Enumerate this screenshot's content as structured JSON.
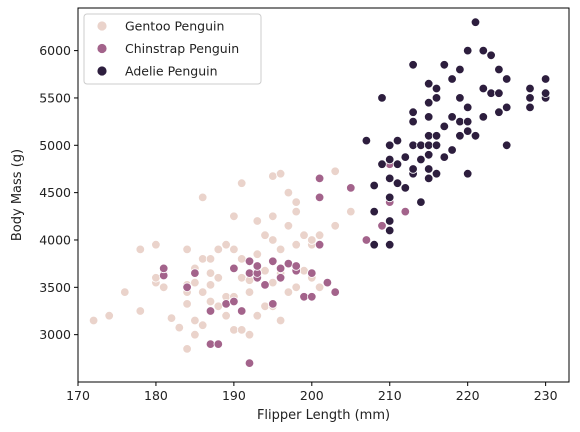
{
  "chart_data": {
    "type": "scatter",
    "xlabel": "Flipper Length (mm)",
    "ylabel": "Body Mass (g)",
    "xlim": [
      170,
      233
    ],
    "ylim": [
      2500,
      6450
    ],
    "xticks": [
      170,
      180,
      190,
      200,
      210,
      220,
      230
    ],
    "yticks": [
      3000,
      3500,
      4000,
      4500,
      5000,
      5500,
      6000
    ],
    "legend_position": "top-left",
    "grid": false,
    "series": [
      {
        "name": "Gentoo Penguin",
        "color": "#ead3cb",
        "points": [
          [
            172,
            3150
          ],
          [
            174,
            3200
          ],
          [
            176,
            3450
          ],
          [
            178,
            3250
          ],
          [
            178,
            3900
          ],
          [
            180,
            3550
          ],
          [
            180,
            3600
          ],
          [
            180,
            3950
          ],
          [
            181,
            3500
          ],
          [
            181,
            3650
          ],
          [
            182,
            3175
          ],
          [
            183,
            3075
          ],
          [
            184,
            2850
          ],
          [
            184,
            3325
          ],
          [
            184,
            3450
          ],
          [
            184,
            3525
          ],
          [
            184,
            3900
          ],
          [
            185,
            3000
          ],
          [
            185,
            3150
          ],
          [
            185,
            3550
          ],
          [
            185,
            3700
          ],
          [
            186,
            3100
          ],
          [
            186,
            3450
          ],
          [
            186,
            3800
          ],
          [
            186,
            4450
          ],
          [
            187,
            3650
          ],
          [
            187,
            3350
          ],
          [
            187,
            3525
          ],
          [
            187,
            3800
          ],
          [
            188,
            3300
          ],
          [
            188,
            3900
          ],
          [
            188,
            3600
          ],
          [
            189,
            3400
          ],
          [
            189,
            3200
          ],
          [
            189,
            3950
          ],
          [
            190,
            3050
          ],
          [
            190,
            3400
          ],
          [
            190,
            3900
          ],
          [
            190,
            4250
          ],
          [
            190,
            3700
          ],
          [
            191,
            3050
          ],
          [
            191,
            3600
          ],
          [
            191,
            4600
          ],
          [
            191,
            3800
          ],
          [
            192,
            3000
          ],
          [
            192,
            3450
          ],
          [
            192,
            3575
          ],
          [
            193,
            3200
          ],
          [
            193,
            3700
          ],
          [
            193,
            3850
          ],
          [
            193,
            4200
          ],
          [
            194,
            3300
          ],
          [
            194,
            3675
          ],
          [
            194,
            4050
          ],
          [
            195,
            3300
          ],
          [
            195,
            3550
          ],
          [
            195,
            4000
          ],
          [
            195,
            4250
          ],
          [
            195,
            4675
          ],
          [
            196,
            3150
          ],
          [
            196,
            3650
          ],
          [
            196,
            3900
          ],
          [
            196,
            4700
          ],
          [
            197,
            3450
          ],
          [
            197,
            4150
          ],
          [
            197,
            4500
          ],
          [
            198,
            3500
          ],
          [
            198,
            3950
          ],
          [
            198,
            4300
          ],
          [
            198,
            4400
          ],
          [
            199,
            3675
          ],
          [
            199,
            4050
          ],
          [
            200,
            3600
          ],
          [
            200,
            3950
          ],
          [
            200,
            4000
          ],
          [
            201,
            3500
          ],
          [
            201,
            4050
          ],
          [
            203,
            4150
          ],
          [
            203,
            4725
          ],
          [
            205,
            4300
          ]
        ]
      },
      {
        "name": "Chinstrap Penguin",
        "color": "#a3638b",
        "points": [
          [
            181,
            3625
          ],
          [
            181,
            3700
          ],
          [
            184,
            3500
          ],
          [
            185,
            3650
          ],
          [
            187,
            2900
          ],
          [
            187,
            3250
          ],
          [
            188,
            2900
          ],
          [
            189,
            3325
          ],
          [
            190,
            3350
          ],
          [
            190,
            3700
          ],
          [
            191,
            3250
          ],
          [
            192,
            2700
          ],
          [
            192,
            3775
          ],
          [
            192,
            3650
          ],
          [
            193,
            3600
          ],
          [
            193,
            3725
          ],
          [
            193,
            3650
          ],
          [
            194,
            3525
          ],
          [
            195,
            3325
          ],
          [
            195,
            3775
          ],
          [
            196,
            3600
          ],
          [
            196,
            3700
          ],
          [
            197,
            3750
          ],
          [
            198,
            3675
          ],
          [
            198,
            3725
          ],
          [
            199,
            3400
          ],
          [
            200,
            3400
          ],
          [
            200,
            3650
          ],
          [
            201,
            3950
          ],
          [
            201,
            4450
          ],
          [
            201,
            4650
          ],
          [
            202,
            3550
          ],
          [
            203,
            3450
          ],
          [
            205,
            4550
          ],
          [
            207,
            4000
          ],
          [
            209,
            4150
          ],
          [
            210,
            4400
          ],
          [
            210,
            4800
          ],
          [
            212,
            4300
          ],
          [
            193,
            3725
          ]
        ]
      },
      {
        "name": "Adelie Penguin",
        "color": "#2d1e3e",
        "points": [
          [
            207,
            5050
          ],
          [
            208,
            3950
          ],
          [
            208,
            4300
          ],
          [
            208,
            4575
          ],
          [
            209,
            4800
          ],
          [
            209,
            5500
          ],
          [
            210,
            3950
          ],
          [
            210,
            4100
          ],
          [
            210,
            4200
          ],
          [
            210,
            4450
          ],
          [
            210,
            4650
          ],
          [
            210,
            4850
          ],
          [
            210,
            5000
          ],
          [
            211,
            4800
          ],
          [
            211,
            4600
          ],
          [
            212,
            4550
          ],
          [
            212,
            4875
          ],
          [
            213,
            4700
          ],
          [
            213,
            4750
          ],
          [
            213,
            5000
          ],
          [
            213,
            5250
          ],
          [
            213,
            5350
          ],
          [
            214,
            4400
          ],
          [
            214,
            4850
          ],
          [
            214,
            5000
          ],
          [
            215,
            4650
          ],
          [
            215,
            4750
          ],
          [
            215,
            4900
          ],
          [
            215,
            5000
          ],
          [
            215,
            5100
          ],
          [
            215,
            5300
          ],
          [
            215,
            5450
          ],
          [
            215,
            5650
          ],
          [
            216,
            4700
          ],
          [
            216,
            5000
          ],
          [
            216,
            5100
          ],
          [
            216,
            5500
          ],
          [
            217,
            4875
          ],
          [
            217,
            5200
          ],
          [
            217,
            5850
          ],
          [
            218,
            4950
          ],
          [
            218,
            5300
          ],
          [
            218,
            5700
          ],
          [
            219,
            5100
          ],
          [
            219,
            5250
          ],
          [
            219,
            5800
          ],
          [
            220,
            4700
          ],
          [
            220,
            5150
          ],
          [
            220,
            5250
          ],
          [
            220,
            5400
          ],
          [
            220,
            6000
          ],
          [
            221,
            5100
          ],
          [
            221,
            6300
          ],
          [
            222,
            5300
          ],
          [
            222,
            5600
          ],
          [
            222,
            6000
          ],
          [
            223,
            5550
          ],
          [
            223,
            5950
          ],
          [
            224,
            5350
          ],
          [
            224,
            5550
          ],
          [
            224,
            5800
          ],
          [
            225,
            5000
          ],
          [
            225,
            5400
          ],
          [
            225,
            5700
          ],
          [
            228,
            5400
          ],
          [
            228,
            5600
          ],
          [
            228,
            5500
          ],
          [
            230,
            5500
          ],
          [
            230,
            5550
          ],
          [
            230,
            5700
          ],
          [
            213,
            5850
          ],
          [
            219,
            5500
          ],
          [
            216,
            5600
          ],
          [
            211,
            5050
          ]
        ]
      }
    ]
  }
}
